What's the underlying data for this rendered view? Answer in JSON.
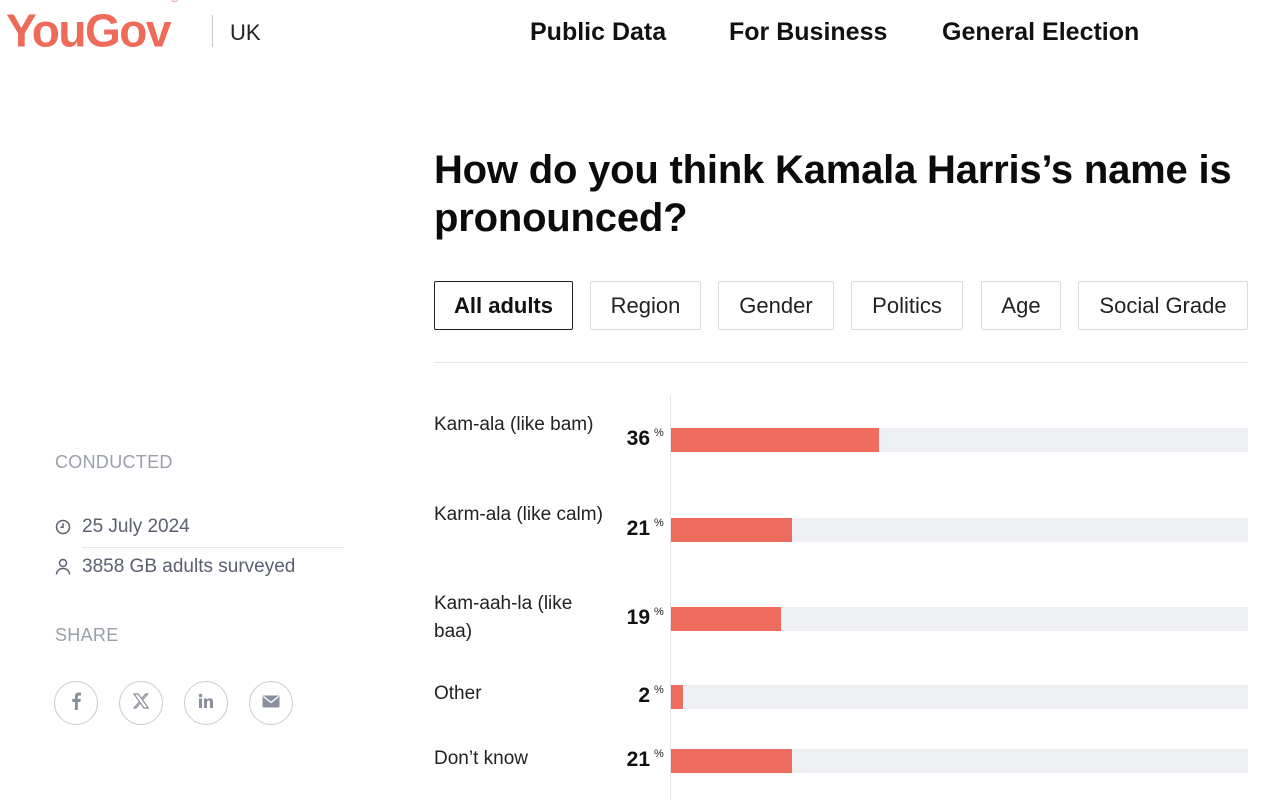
{
  "brand": {
    "logo": "YouGov",
    "registered": "®",
    "region": "UK",
    "accent": "#ee6a59"
  },
  "nav": [
    {
      "label": "Public Data"
    },
    {
      "label": "For Business"
    },
    {
      "label": "General Election"
    }
  ],
  "survey": {
    "question": "How do you think Kamala Harris’s name is pronounced?",
    "tabs": [
      {
        "label": "All adults",
        "active": true
      },
      {
        "label": "Region",
        "active": false
      },
      {
        "label": "Gender",
        "active": false
      },
      {
        "label": "Politics",
        "active": false
      },
      {
        "label": "Age",
        "active": false
      },
      {
        "label": "Social Grade",
        "active": false
      }
    ]
  },
  "sidebar": {
    "conducted_heading": "CONDUCTED",
    "date": "25 July 2024",
    "sample": "3858 GB adults surveyed",
    "share_heading": "SHARE",
    "share_icons": [
      "facebook-icon",
      "x-icon",
      "linkedin-icon",
      "mail-icon"
    ]
  },
  "chart_data": {
    "type": "bar",
    "orientation": "horizontal",
    "unit": "%",
    "bar_color": "#ee6c5d",
    "track_color": "#eef0f3",
    "xlim": [
      0,
      100
    ],
    "categories": [
      "Kam-ala (like bam)",
      "Karm-ala (like calm)",
      "Kam-aah-la (like baa)",
      "Other",
      "Don’t know"
    ],
    "values": [
      36,
      21,
      19,
      2,
      21
    ]
  }
}
